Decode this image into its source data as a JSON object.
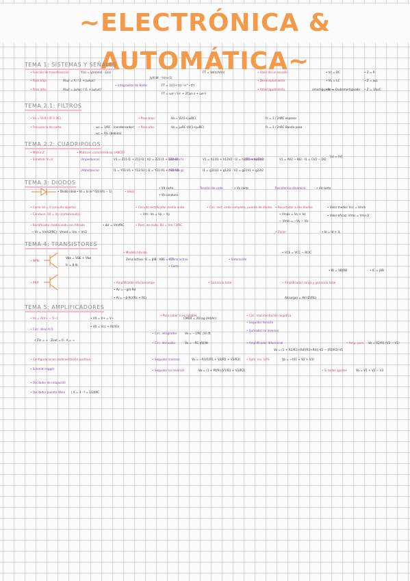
{
  "title": "~ELECTRÓNICA & AUTOMÁTICA~",
  "sections": {
    "tema1": "TEMA 1: SISTEMAS Y SEÑALES",
    "tema21": "TEMA 2.1: FILTROS",
    "tema22": "TEMA 2.2: CUADRIPOLOS",
    "tema3": "TEMA 3: DIODOS",
    "tema4": "TEMA 4: TRANSISTORES",
    "tema5": "TEMA 5: AMPLIFICADORES"
  },
  "t1": {
    "a1": "• Función de transferencia:",
    "a2": "• Paso bajo:",
    "a3": "• Paso alto:",
    "b1": "• Integración de Bode:",
    "c1": "• Valor de un escalón",
    "c2": "• Desacoplamiento",
    "c3": "• Amortiguamiento",
    "d1": "• Vc = RC",
    "d2": "• VL = LC",
    "d3": "• Ic = C"
  },
  "t21": {
    "a1": "• Vo = Vi·R / (R + XC)",
    "a2": "• Frecuencia de corte:",
    "b1": "• Paso bajo:",
    "b2": "• Paso alto:",
    "c1": "fc = 1 / 2πRC  espesor",
    "c2": "fc = 1 / 2πRC  Banda pasa"
  },
  "t22": {
    "a1": "• Matriz Z",
    "a2": "• Simetría: V=V",
    "b1": "• Matrices características (ABCD)",
    "b2": "(Impedancia)",
    "b3": "(Admitancia)",
    "c1": "(Híbrida h)",
    "c2": "(Híbrida g)",
    "d1": "(Transmisión)",
    "e1": "[a] = [V]"
  },
  "t3": {
    "a1": "• Diodo ideal",
    "a2": "• Id = Is·(e^(V/nVt) − 1)",
    "b1": "• Corte: Id = 0  (circuito abierto)",
    "b2": "• Conduce: Vd = Vγ  (cortocircuito)",
    "b3": "• Rectificador media onda con filtrado",
    "c1": "• Circuito rectificador media onda",
    "c2": "• Circ. rect. onda completa, puente de diodos",
    "c3": "• Rect. de onda: ΔV = Vm / 2fRC",
    "d1": "• Recortador a dos diodos",
    "d2": "• Vmáx = Vγ + Vz",
    "d3": "• Zener",
    "e1": "• Valor medio: Vcc = Vm/π",
    "e2": "• Valor eficaz: Vrms = Vm/√2"
  },
  "t4": {
    "a1": "• NPN:",
    "a2": "• PNP:",
    "b1": "• Modelo híbrido",
    "b2": "Vbe = VBE + Vbe",
    "b3": "Ic = β·Ib",
    "c1": "• Zona activa",
    "c2": "• Corte",
    "c3": "• Saturación",
    "d1": "• Amplificador efecto campo",
    "d2": "• Ganancia total",
    "e1": "• Amplificador carga y ganancia total",
    "f1": "• Av = −gm·Rd",
    "g1": "• Ai = −β·Rc/(Rc + RL)"
  },
  "t5": {
    "a1": "• Ve = A(V+ − V−)",
    "a2": "• Circ. ideal A.O.",
    "a3": "• Configuraciones realimentación positiva",
    "a4": "• Schmitt trigger",
    "a5": "• Oscilador de relajación",
    "a6": "• Oscilador puente Wien",
    "b1": "• V0 = V+ = V−",
    "b2": "• V0 = Vcc + Rc/Vin",
    "c1": "• Para saber si es estable",
    "c2": "• Circ. integrador",
    "c3": "• Circ. derivador",
    "c4": "• Seguidor inversor",
    "c5": "• Seguidor no inversor",
    "d1": "CMRR = 20 log (Ad/Ac)",
    "e1": "• Circ. realimentación negativa",
    "e2": "• Seguidor tensión",
    "e3": "• Sumador no inversor",
    "e4": "• Amplificador diferencial",
    "e5": "• Sum. inv. 10%",
    "f1": "• Amp. puro",
    "f2": "• Si todas iguales"
  }
}
